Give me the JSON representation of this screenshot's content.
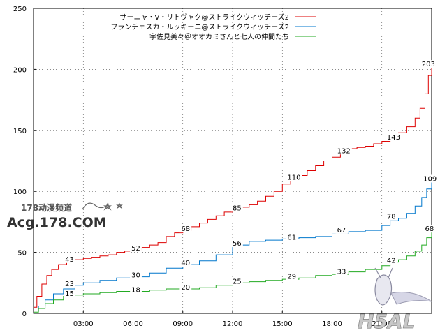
{
  "chart_data": {
    "type": "line",
    "title": "",
    "xlabel": "",
    "ylabel": "",
    "xlim": [
      0,
      24
    ],
    "ylim": [
      0,
      250
    ],
    "xticks": [
      {
        "value": 3,
        "label": "03:00"
      },
      {
        "value": 6,
        "label": "06:00"
      },
      {
        "value": 9,
        "label": "09:00"
      },
      {
        "value": 12,
        "label": "12:00"
      },
      {
        "value": 15,
        "label": "15:00"
      },
      {
        "value": 18,
        "label": "18:00"
      },
      {
        "value": 21,
        "label": "21:00"
      }
    ],
    "yticks": [
      0,
      50,
      100,
      150,
      200,
      250
    ],
    "grid": true,
    "legend_position": "top-center",
    "series": [
      {
        "name": "サーニャ・V・リトヴャク@ストライクウィッチーズ2",
        "color": "#dd0000",
        "x": [
          0,
          0.2,
          0.5,
          0.8,
          1.1,
          1.5,
          2.0,
          2.5,
          3.0,
          3.5,
          4.0,
          4.5,
          5.0,
          5.5,
          6.0,
          6.5,
          7.0,
          7.5,
          8.0,
          8.5,
          9.0,
          9.5,
          10.0,
          10.5,
          11.0,
          11.5,
          12.0,
          12.5,
          13.0,
          13.5,
          14.0,
          14.5,
          15.0,
          15.5,
          16.0,
          16.5,
          17.0,
          17.5,
          18.0,
          18.5,
          19.0,
          19.5,
          20.0,
          20.5,
          21.0,
          21.5,
          22.0,
          22.5,
          23.0,
          23.3,
          23.6,
          23.8,
          24.0
        ],
        "y": [
          5,
          14,
          24,
          31,
          36,
          40,
          43,
          44,
          45,
          46,
          47,
          48,
          50,
          51,
          52,
          54,
          56,
          58,
          63,
          66,
          68,
          71,
          74,
          77,
          80,
          83,
          85,
          87,
          89,
          92,
          96,
          100,
          106,
          110,
          113,
          117,
          121,
          125,
          128,
          132,
          135,
          136,
          137,
          139,
          141,
          143,
          148,
          153,
          160,
          168,
          180,
          195,
          203
        ]
      },
      {
        "name": "フランチェスカ・ルッキーニ@ストライクウィッチーズ2",
        "color": "#0077cc",
        "x": [
          0,
          0.3,
          0.7,
          1.2,
          1.8,
          2.5,
          3.0,
          4.0,
          5.0,
          6.0,
          7.0,
          8.0,
          9.0,
          10.0,
          11.0,
          12.0,
          13.0,
          14.0,
          15.0,
          16.0,
          17.0,
          18.0,
          19.0,
          20.0,
          21.0,
          21.5,
          22.0,
          22.5,
          23.0,
          23.4,
          23.7,
          24.0
        ],
        "y": [
          2,
          6,
          11,
          16,
          20,
          23,
          25,
          27,
          29,
          30,
          33,
          37,
          40,
          43,
          48,
          56,
          59,
          60,
          61,
          62,
          63,
          65,
          67,
          68,
          72,
          76,
          78,
          82,
          88,
          95,
          102,
          109
        ]
      },
      {
        "name": "宇佐見美々＠オオカミさんと七人の仲間たち",
        "color": "#22aa22",
        "x": [
          0,
          0.3,
          0.7,
          1.2,
          1.8,
          2.5,
          3.0,
          4.0,
          5.0,
          6.0,
          7.0,
          8.0,
          9.0,
          10.0,
          11.0,
          12.0,
          13.0,
          14.0,
          15.0,
          16.0,
          17.0,
          18.0,
          19.0,
          20.0,
          21.0,
          21.5,
          22.0,
          22.5,
          23.0,
          23.4,
          23.7,
          24.0
        ],
        "y": [
          1,
          4,
          8,
          11,
          14,
          15,
          16,
          17,
          18,
          18,
          19,
          20,
          20,
          21,
          23,
          25,
          26,
          27,
          28,
          29,
          31,
          32,
          34,
          36,
          39,
          42,
          44,
          47,
          51,
          56,
          62,
          68
        ]
      }
    ],
    "data_labels": [
      {
        "series": 0,
        "x": 1.9,
        "y": 43,
        "text": "43"
      },
      {
        "series": 0,
        "x": 5.9,
        "y": 52,
        "text": "52"
      },
      {
        "series": 0,
        "x": 8.9,
        "y": 68,
        "text": "68"
      },
      {
        "series": 0,
        "x": 12.0,
        "y": 85,
        "text": "85"
      },
      {
        "series": 0,
        "x": 15.3,
        "y": 110,
        "text": "110"
      },
      {
        "series": 0,
        "x": 18.3,
        "y": 132,
        "text": "132"
      },
      {
        "series": 0,
        "x": 21.3,
        "y": 143,
        "text": "143"
      },
      {
        "series": 0,
        "x": 23.4,
        "y": 203,
        "text": "203"
      },
      {
        "series": 1,
        "x": 1.9,
        "y": 23,
        "text": "23"
      },
      {
        "series": 1,
        "x": 5.9,
        "y": 30,
        "text": "30"
      },
      {
        "series": 1,
        "x": 8.9,
        "y": 40,
        "text": "40"
      },
      {
        "series": 1,
        "x": 12.0,
        "y": 56,
        "text": "56"
      },
      {
        "series": 1,
        "x": 15.3,
        "y": 61,
        "text": "61"
      },
      {
        "series": 1,
        "x": 18.3,
        "y": 67,
        "text": "67"
      },
      {
        "series": 1,
        "x": 21.3,
        "y": 78,
        "text": "78"
      },
      {
        "series": 1,
        "x": 23.5,
        "y": 109,
        "text": "109"
      },
      {
        "series": 2,
        "x": 1.9,
        "y": 15,
        "text": "15"
      },
      {
        "series": 2,
        "x": 5.9,
        "y": 18,
        "text": "18"
      },
      {
        "series": 2,
        "x": 8.9,
        "y": 20,
        "text": "20"
      },
      {
        "series": 2,
        "x": 12.0,
        "y": 25,
        "text": "25"
      },
      {
        "series": 2,
        "x": 15.3,
        "y": 29,
        "text": "29"
      },
      {
        "series": 2,
        "x": 18.3,
        "y": 33,
        "text": "33"
      },
      {
        "series": 2,
        "x": 21.3,
        "y": 42,
        "text": "42"
      },
      {
        "series": 2,
        "x": 23.6,
        "y": 68,
        "text": "68"
      }
    ]
  },
  "watermarks": {
    "left_top": "178动漫频道",
    "left_bottom": "Acg.178.COM",
    "right": "H5AL"
  }
}
